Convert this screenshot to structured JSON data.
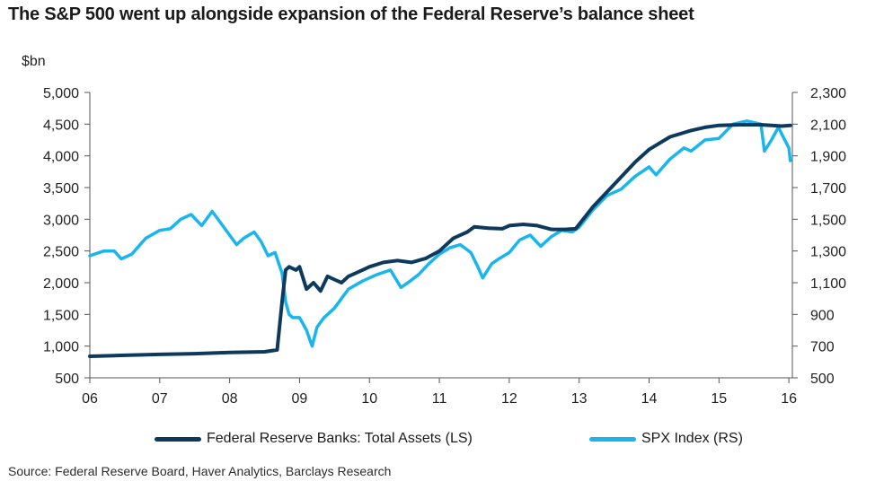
{
  "title": "The S&P 500 went up alongside expansion of the Federal Reserve’s balance sheet",
  "unit_label": "$bn",
  "source": "Source: Federal Reserve Board, Haver Analytics, Barclays Research",
  "colors": {
    "fed": "#0d3a5c",
    "spx": "#19b5ec",
    "axis": "#555555"
  },
  "chart_data": {
    "type": "line",
    "title": "The S&P 500 went up alongside expansion of the Federal Reserve’s balance sheet",
    "xlabel": "",
    "ylabel": "$bn",
    "xlim": [
      2006,
      2016.05
    ],
    "ylim_left": [
      500,
      5000
    ],
    "ylim_right": [
      500,
      2300
    ],
    "x_ticks": [
      2006,
      2007,
      2008,
      2009,
      2010,
      2011,
      2012,
      2013,
      2014,
      2015,
      2016
    ],
    "x_tick_labels": [
      "06",
      "07",
      "08",
      "09",
      "10",
      "11",
      "12",
      "13",
      "14",
      "15",
      "16"
    ],
    "y_left_ticks": [
      500,
      1000,
      1500,
      2000,
      2500,
      3000,
      3500,
      4000,
      4500,
      5000
    ],
    "y_left_tick_labels": [
      "500",
      "1,000",
      "1,500",
      "2,000",
      "2,500",
      "3,000",
      "3,500",
      "4,000",
      "4,500",
      "5,000"
    ],
    "y_right_ticks": [
      500,
      700,
      900,
      1100,
      1300,
      1500,
      1700,
      1900,
      2100,
      2300
    ],
    "y_right_tick_labels": [
      "500",
      "700",
      "900",
      "1,100",
      "1,300",
      "1,500",
      "1,700",
      "1,900",
      "2,100",
      "2,300"
    ],
    "series": [
      {
        "name": "Federal Reserve Banks: Total Assets (LS)",
        "axis": "left",
        "x": [
          2006.0,
          2006.5,
          2007.0,
          2007.5,
          2008.0,
          2008.5,
          2008.68,
          2008.75,
          2008.8,
          2008.85,
          2008.95,
          2009.0,
          2009.1,
          2009.2,
          2009.3,
          2009.4,
          2009.5,
          2009.6,
          2009.7,
          2009.8,
          2009.9,
          2010.0,
          2010.2,
          2010.4,
          2010.6,
          2010.8,
          2011.0,
          2011.2,
          2011.4,
          2011.5,
          2011.7,
          2011.9,
          2012.0,
          2012.2,
          2012.4,
          2012.6,
          2012.8,
          2012.95,
          2013.2,
          2013.5,
          2013.8,
          2014.0,
          2014.3,
          2014.6,
          2014.8,
          2015.0,
          2015.3,
          2015.6,
          2015.9,
          2016.02
        ],
        "values": [
          840,
          855,
          870,
          880,
          900,
          910,
          940,
          1700,
          2200,
          2250,
          2200,
          2250,
          1900,
          2000,
          1870,
          2100,
          2050,
          2000,
          2100,
          2150,
          2200,
          2250,
          2320,
          2350,
          2320,
          2380,
          2500,
          2700,
          2800,
          2880,
          2860,
          2850,
          2900,
          2920,
          2900,
          2840,
          2840,
          2850,
          3200,
          3550,
          3900,
          4100,
          4300,
          4400,
          4450,
          4480,
          4490,
          4490,
          4470,
          4480
        ]
      },
      {
        "name": "SPX Index (RS)",
        "axis": "right",
        "x": [
          2006.0,
          2006.1,
          2006.2,
          2006.35,
          2006.45,
          2006.6,
          2006.8,
          2007.0,
          2007.15,
          2007.3,
          2007.45,
          2007.6,
          2007.75,
          2007.85,
          2008.0,
          2008.1,
          2008.2,
          2008.35,
          2008.45,
          2008.55,
          2008.65,
          2008.75,
          2008.8,
          2008.85,
          2008.9,
          2009.0,
          2009.1,
          2009.18,
          2009.25,
          2009.35,
          2009.5,
          2009.7,
          2009.9,
          2010.1,
          2010.3,
          2010.45,
          2010.55,
          2010.7,
          2010.85,
          2011.0,
          2011.15,
          2011.3,
          2011.45,
          2011.55,
          2011.62,
          2011.75,
          2011.85,
          2012.0,
          2012.15,
          2012.3,
          2012.45,
          2012.6,
          2012.75,
          2012.9,
          2013.0,
          2013.2,
          2013.4,
          2013.6,
          2013.8,
          2014.0,
          2014.1,
          2014.3,
          2014.5,
          2014.6,
          2014.8,
          2015.0,
          2015.2,
          2015.4,
          2015.6,
          2015.65,
          2015.75,
          2015.85,
          2016.0,
          2016.02
        ],
        "values": [
          1270,
          1285,
          1300,
          1300,
          1250,
          1280,
          1380,
          1430,
          1440,
          1500,
          1530,
          1460,
          1550,
          1490,
          1400,
          1340,
          1380,
          1420,
          1360,
          1270,
          1290,
          1160,
          980,
          900,
          880,
          880,
          800,
          700,
          820,
          880,
          940,
          1060,
          1110,
          1150,
          1180,
          1070,
          1100,
          1150,
          1220,
          1280,
          1320,
          1340,
          1290,
          1200,
          1130,
          1220,
          1250,
          1290,
          1370,
          1400,
          1330,
          1390,
          1430,
          1420,
          1450,
          1560,
          1650,
          1690,
          1770,
          1830,
          1780,
          1880,
          1950,
          1930,
          2000,
          2010,
          2100,
          2120,
          2100,
          1930,
          2000,
          2080,
          1950,
          1870
        ]
      }
    ],
    "legend_position": "bottom-center"
  }
}
